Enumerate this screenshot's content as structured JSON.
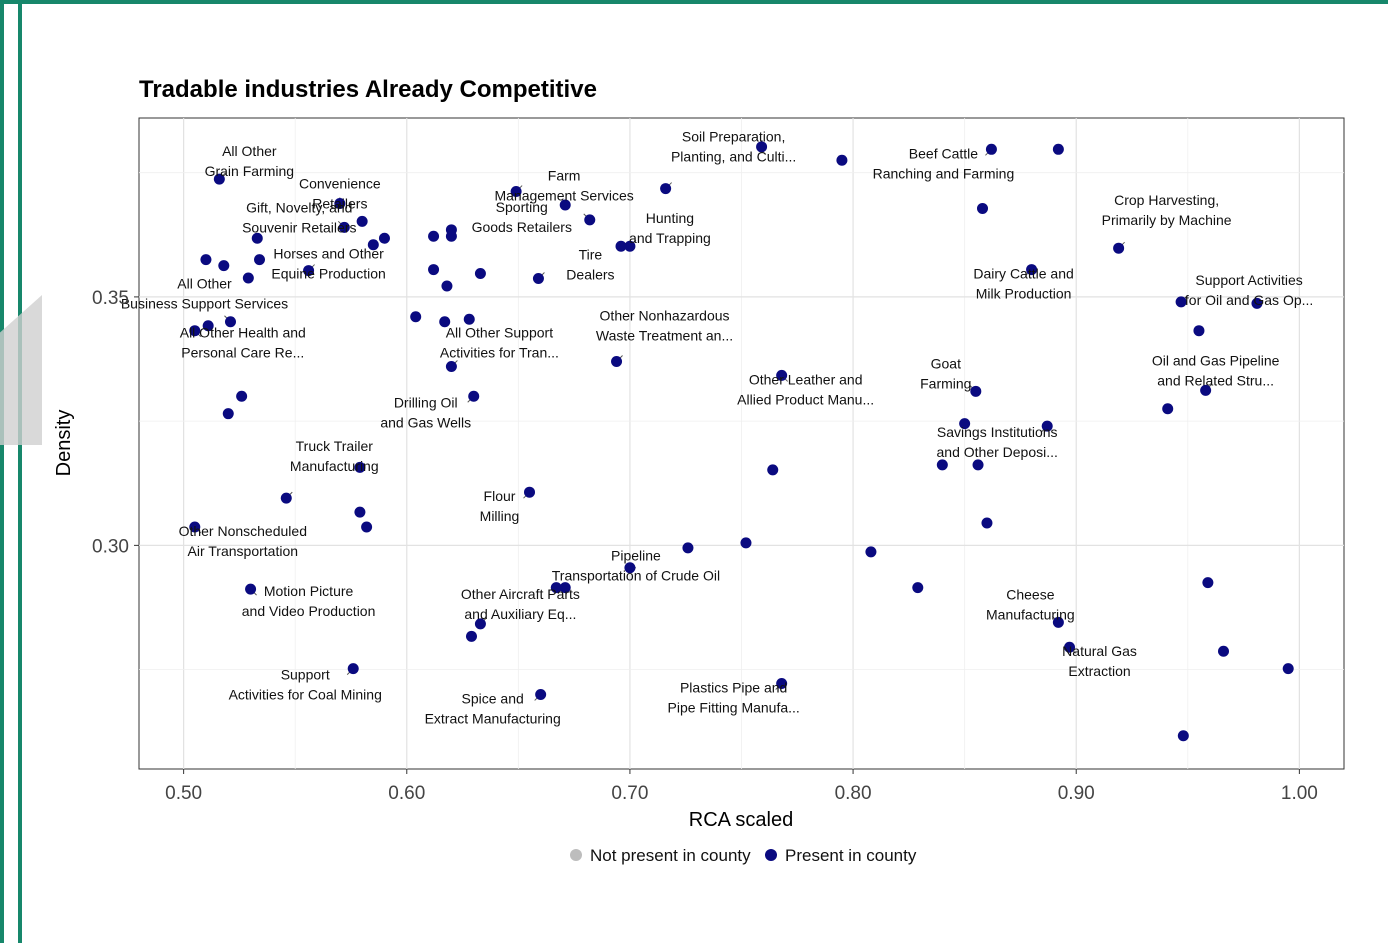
{
  "chart_data": {
    "type": "scatter",
    "title": "Tradable industries Already Competitive",
    "xlabel": "RCA scaled",
    "ylabel": "Density",
    "xlim": [
      0.48,
      1.02
    ],
    "ylim": [
      0.255,
      0.386
    ],
    "xticks": [
      0.5,
      0.6,
      0.7,
      0.8,
      0.9,
      1.0
    ],
    "xtick_labels": [
      "0.50",
      "0.60",
      "0.70",
      "0.80",
      "0.90",
      "1.00"
    ],
    "yticks": [
      0.3,
      0.35
    ],
    "ytick_labels": [
      "0.30",
      "0.35"
    ],
    "grid": true,
    "legend": {
      "placement": "bottom",
      "entries": [
        {
          "label": "Not present in county",
          "color": "#bdbdbd"
        },
        {
          "label": "Present in county",
          "color": "#0a0a80"
        }
      ]
    },
    "series": [
      {
        "name": "Present in county",
        "color": "#0a0a80",
        "points": [
          {
            "x": 0.516,
            "y": 0.3737,
            "label": "All Other Grain Farming"
          },
          {
            "x": 0.57,
            "y": 0.3688,
            "label": "Convenience Retailers"
          },
          {
            "x": 0.58,
            "y": 0.3652
          },
          {
            "x": 0.572,
            "y": 0.364,
            "label": "Gift, Novelty, and Souvenir Retailers"
          },
          {
            "x": 0.533,
            "y": 0.3618
          },
          {
            "x": 0.59,
            "y": 0.3618
          },
          {
            "x": 0.585,
            "y": 0.3605
          },
          {
            "x": 0.534,
            "y": 0.3575
          },
          {
            "x": 0.51,
            "y": 0.3575
          },
          {
            "x": 0.518,
            "y": 0.3563
          },
          {
            "x": 0.556,
            "y": 0.3553,
            "label": "Horses and Other Equine Production"
          },
          {
            "x": 0.529,
            "y": 0.3538
          },
          {
            "x": 0.521,
            "y": 0.345,
            "label": "All Other Business Support Services"
          },
          {
            "x": 0.505,
            "y": 0.3432,
            "label": "All Other Health and Personal Care Re..."
          },
          {
            "x": 0.511,
            "y": 0.3442
          },
          {
            "x": 0.526,
            "y": 0.33
          },
          {
            "x": 0.52,
            "y": 0.3265
          },
          {
            "x": 0.546,
            "y": 0.3095,
            "label": "Truck Trailer Manufacturing"
          },
          {
            "x": 0.579,
            "y": 0.3157
          },
          {
            "x": 0.579,
            "y": 0.3067
          },
          {
            "x": 0.582,
            "y": 0.3037
          },
          {
            "x": 0.505,
            "y": 0.3037,
            "label": "Other Nonscheduled Air Transportation"
          },
          {
            "x": 0.53,
            "y": 0.2912,
            "label": "Motion Picture and Video Production"
          },
          {
            "x": 0.576,
            "y": 0.2752,
            "label": "Support Activities for Coal Mining"
          },
          {
            "x": 0.649,
            "y": 0.3712,
            "label": "Farm Management Services"
          },
          {
            "x": 0.671,
            "y": 0.3685
          },
          {
            "x": 0.682,
            "y": 0.3655,
            "label": "Sporting Goods Retailers"
          },
          {
            "x": 0.62,
            "y": 0.3635
          },
          {
            "x": 0.62,
            "y": 0.3622
          },
          {
            "x": 0.612,
            "y": 0.3622
          },
          {
            "x": 0.612,
            "y": 0.3555
          },
          {
            "x": 0.633,
            "y": 0.3547
          },
          {
            "x": 0.659,
            "y": 0.3537,
            "label": "Tire Dealers"
          },
          {
            "x": 0.618,
            "y": 0.3522
          },
          {
            "x": 0.604,
            "y": 0.346
          },
          {
            "x": 0.617,
            "y": 0.345
          },
          {
            "x": 0.628,
            "y": 0.3455
          },
          {
            "x": 0.62,
            "y": 0.336,
            "label": "All Other Support Activities for Tran..."
          },
          {
            "x": 0.63,
            "y": 0.33,
            "label": "Drilling Oil and Gas Wells"
          },
          {
            "x": 0.655,
            "y": 0.3107,
            "label": "Flour Milling"
          },
          {
            "x": 0.696,
            "y": 0.3602
          },
          {
            "x": 0.7,
            "y": 0.3602,
            "label": "Hunting and Trapping"
          },
          {
            "x": 0.716,
            "y": 0.3718,
            "label": "Soil Preparation, Planting, and Culti..."
          },
          {
            "x": 0.694,
            "y": 0.337,
            "label": "Other Nonhazardous Waste Treatment an..."
          },
          {
            "x": 0.726,
            "y": 0.2995
          },
          {
            "x": 0.7,
            "y": 0.2955,
            "label": "Pipeline Transportation of Crude Oil"
          },
          {
            "x": 0.667,
            "y": 0.2915
          },
          {
            "x": 0.671,
            "y": 0.2915
          },
          {
            "x": 0.633,
            "y": 0.2842,
            "label": "Other Aircraft Parts and Auxiliary Eq..."
          },
          {
            "x": 0.629,
            "y": 0.2817
          },
          {
            "x": 0.66,
            "y": 0.27,
            "label": "Spice and Extract Manufacturing"
          },
          {
            "x": 0.759,
            "y": 0.3802
          },
          {
            "x": 0.795,
            "y": 0.3775
          },
          {
            "x": 0.768,
            "y": 0.3342,
            "label": "Other Leather and Allied Product Manu..."
          },
          {
            "x": 0.764,
            "y": 0.3152
          },
          {
            "x": 0.752,
            "y": 0.3005
          },
          {
            "x": 0.808,
            "y": 0.2987
          },
          {
            "x": 0.829,
            "y": 0.2915
          },
          {
            "x": 0.768,
            "y": 0.2722,
            "label": "Plastics Pipe and Pipe Fitting Manufa..."
          },
          {
            "x": 0.862,
            "y": 0.3797,
            "label": "Beef Cattle Ranching and Farming"
          },
          {
            "x": 0.892,
            "y": 0.3797
          },
          {
            "x": 0.858,
            "y": 0.3678
          },
          {
            "x": 0.88,
            "y": 0.3555,
            "label": "Dairy Cattle and Milk Production"
          },
          {
            "x": 0.919,
            "y": 0.3598,
            "label": "Crop Harvesting, Primarily by Machine"
          },
          {
            "x": 0.855,
            "y": 0.331,
            "label": "Goat Farming"
          },
          {
            "x": 0.85,
            "y": 0.3245
          },
          {
            "x": 0.887,
            "y": 0.324,
            "label": "Savings Institutions and Other Deposi..."
          },
          {
            "x": 0.84,
            "y": 0.3162
          },
          {
            "x": 0.856,
            "y": 0.3162
          },
          {
            "x": 0.86,
            "y": 0.3045
          },
          {
            "x": 0.892,
            "y": 0.2845,
            "label": "Cheese Manufacturing"
          },
          {
            "x": 0.897,
            "y": 0.2795,
            "label": "Natural Gas Extraction"
          },
          {
            "x": 0.947,
            "y": 0.349,
            "label": "Support Activities for Oil and Gas Op..."
          },
          {
            "x": 0.981,
            "y": 0.3487
          },
          {
            "x": 0.955,
            "y": 0.3432
          },
          {
            "x": 0.958,
            "y": 0.3312,
            "label": "Oil and Gas Pipeline and Related Stru..."
          },
          {
            "x": 0.941,
            "y": 0.3275
          },
          {
            "x": 0.959,
            "y": 0.2925
          },
          {
            "x": 0.966,
            "y": 0.2787
          },
          {
            "x": 0.995,
            "y": 0.2752
          },
          {
            "x": 0.948,
            "y": 0.2617
          }
        ]
      }
    ]
  }
}
